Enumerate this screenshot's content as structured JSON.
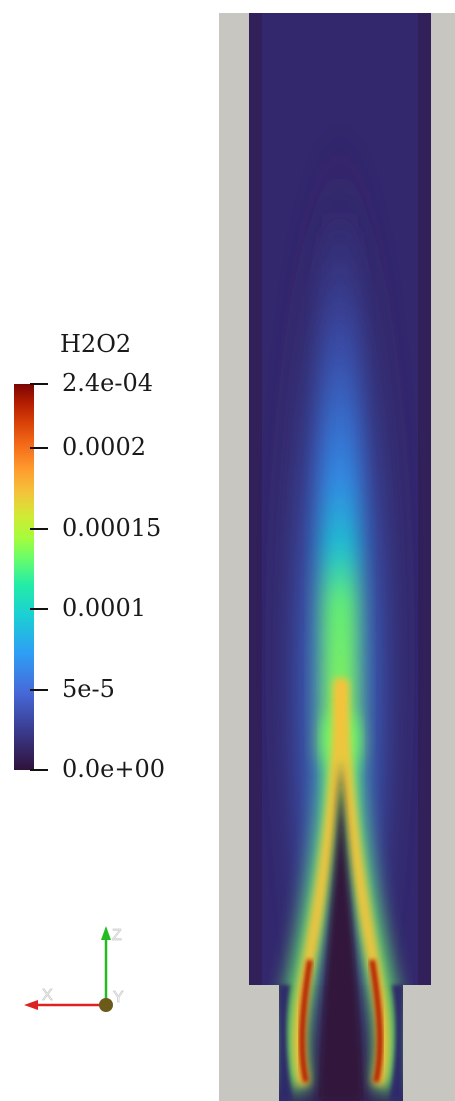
{
  "legend": {
    "title": "H2O2",
    "ticks": [
      {
        "label": "2.4e-04",
        "value": 0.00024
      },
      {
        "label": "0.0002",
        "value": 0.0002
      },
      {
        "label": "0.00015",
        "value": 0.00015
      },
      {
        "label": "0.0001",
        "value": 0.0001
      },
      {
        "label": "5e-5",
        "value": 5e-05
      },
      {
        "label": "0.0e+00",
        "value": 0.0
      }
    ],
    "range": [
      0.0,
      0.00024
    ],
    "colormap": "turbo"
  },
  "axes_triad": {
    "z_label": "Z",
    "x_label": "X",
    "y_label": "Y",
    "z_color": "#22bb22",
    "x_color": "#dd2222",
    "origin_color": "#6b5a1a"
  },
  "colors": {
    "geometry_background": "#c8c6c0",
    "field_low": "#30123b",
    "field_high": "#7a0403"
  }
}
